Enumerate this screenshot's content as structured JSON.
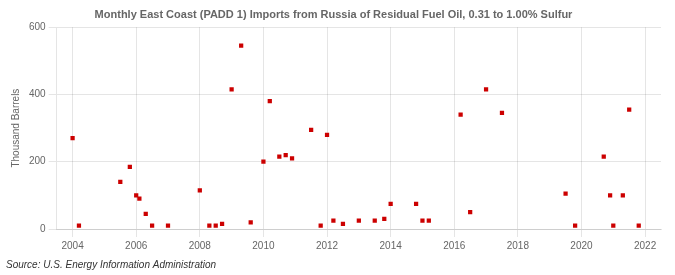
{
  "chart_data": {
    "type": "scatter",
    "title": "Monthly East Coast (PADD 1) Imports from Russia of Residual Fuel Oil, 0.31 to 1.00% Sulfur",
    "ylabel": "Thousand Barrels",
    "annotations": [
      "Source: U.S. Energy Information Administration"
    ],
    "color": "#cc0000",
    "marker": "square",
    "grid": true,
    "xlim": [
      2003.5,
      2022.5
    ],
    "ylim": [
      0,
      600
    ],
    "xticks": [
      2004,
      2006,
      2008,
      2010,
      2012,
      2014,
      2016,
      2018,
      2020,
      2022
    ],
    "yticks": [
      0,
      200,
      400,
      600
    ],
    "x": [
      2004.0,
      2004.2,
      2005.5,
      2005.8,
      2006.0,
      2006.1,
      2006.3,
      2006.5,
      2007.0,
      2008.0,
      2008.3,
      2008.5,
      2008.7,
      2009.0,
      2009.3,
      2009.6,
      2010.0,
      2010.2,
      2010.5,
      2010.7,
      2010.9,
      2011.5,
      2011.8,
      2012.0,
      2012.2,
      2012.5,
      2013.0,
      2013.5,
      2013.8,
      2014.0,
      2014.8,
      2015.0,
      2015.2,
      2016.2,
      2016.5,
      2017.0,
      2017.5,
      2019.5,
      2019.8,
      2020.7,
      2020.9,
      2021.0,
      2021.3,
      2021.5,
      2021.8
    ],
    "values": [
      270,
      10,
      140,
      185,
      100,
      90,
      45,
      10,
      10,
      115,
      10,
      10,
      15,
      415,
      545,
      20,
      200,
      380,
      215,
      220,
      210,
      295,
      10,
      280,
      25,
      15,
      25,
      25,
      30,
      75,
      75,
      25,
      25,
      340,
      50,
      415,
      345,
      105,
      10,
      215,
      100,
      10,
      100,
      355,
      10
    ]
  }
}
